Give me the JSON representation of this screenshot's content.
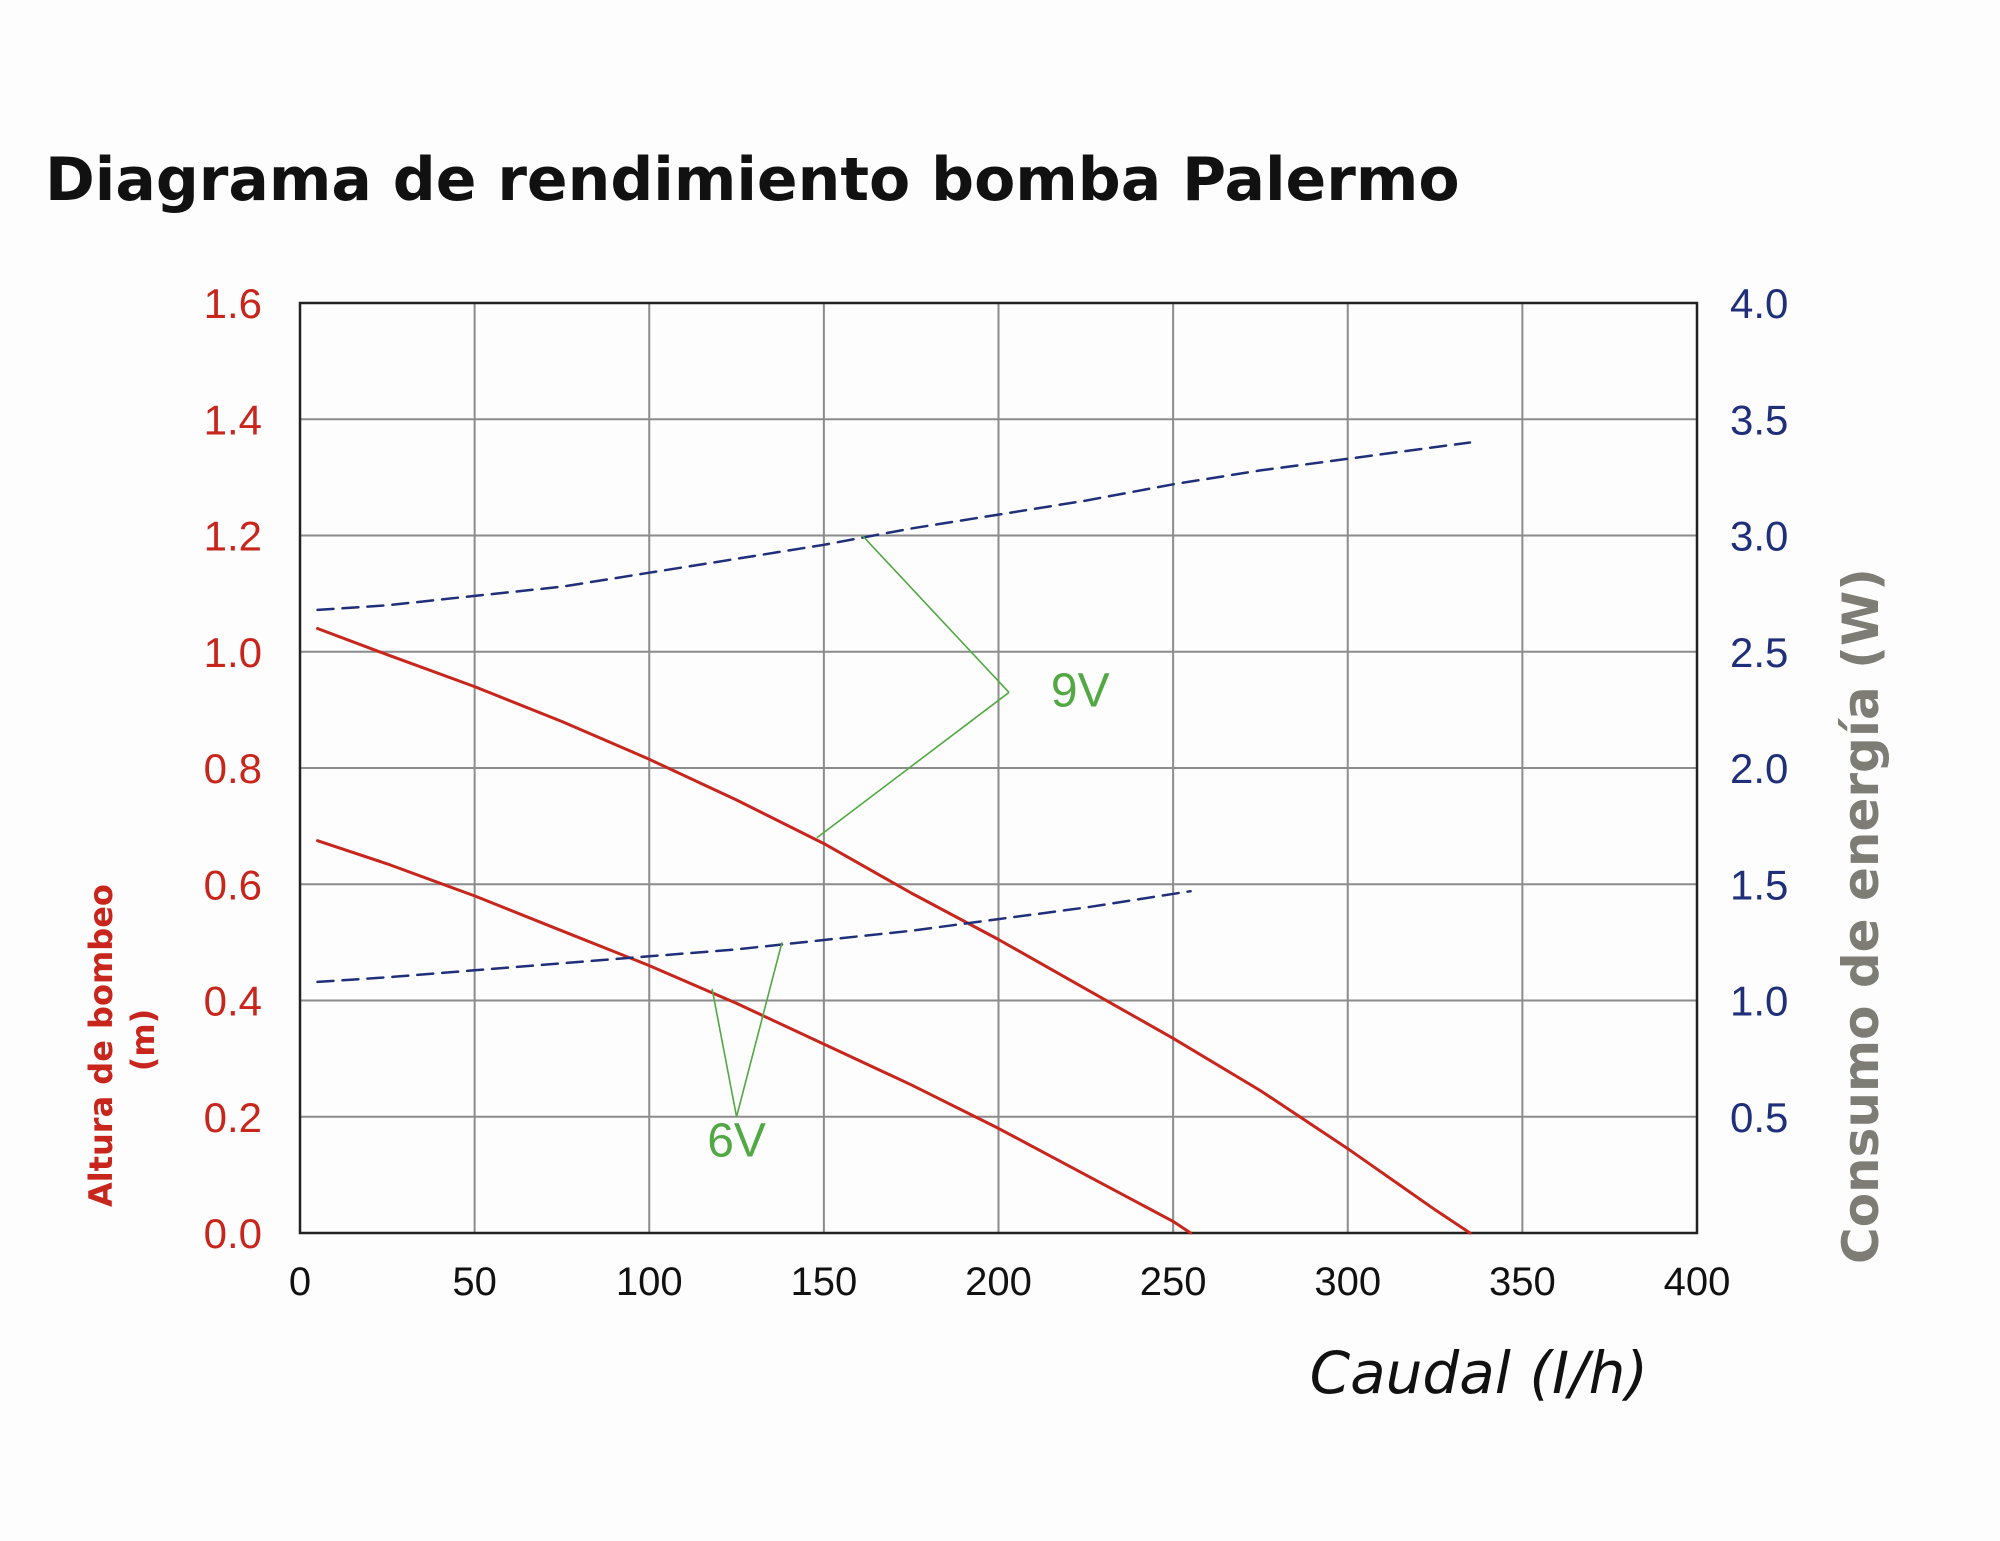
{
  "chart_data": {
    "type": "line",
    "title": "Diagrama de rendimiento bomba Palermo",
    "xlabel": "Caudal (I/h)",
    "ylabel": "Altura de bombeo (m)",
    "ylabel_lines": [
      "Altura de bombeo",
      "(m)"
    ],
    "y2label": "Consumo de energía (W)",
    "xlim": [
      0,
      400
    ],
    "ylim": [
      0,
      1.6
    ],
    "y2lim": [
      0,
      4.0
    ],
    "grid": true,
    "x_ticks": [
      "0",
      "50",
      "100",
      "150",
      "200",
      "250",
      "300",
      "350",
      "400"
    ],
    "y_ticks": [
      "0.0",
      "0.2",
      "0.4",
      "0.6",
      "0.8",
      "1.0",
      "1.2",
      "1.4",
      "1.6"
    ],
    "y2_ticks": [
      "0.5",
      "1.0",
      "1.5",
      "2.0",
      "2.5",
      "3.0",
      "3.5",
      "4.0"
    ],
    "colors": {
      "head": "#c8261c",
      "power": "#1f2f7a",
      "annotation": "#52a843",
      "grid": "#8c8c8c",
      "axis_right_label": "#7d7d75"
    },
    "series": [
      {
        "axis": "left",
        "style": "solid",
        "voltage": "9V",
        "x": [
          5,
          25,
          50,
          75,
          100,
          125,
          150,
          175,
          200,
          225,
          250,
          275,
          300,
          325,
          335
        ],
        "values": [
          1.04,
          0.995,
          0.94,
          0.88,
          0.815,
          0.745,
          0.67,
          0.585,
          0.505,
          0.42,
          0.335,
          0.245,
          0.145,
          0.04,
          0.0
        ]
      },
      {
        "axis": "left",
        "style": "solid",
        "voltage": "6V",
        "x": [
          5,
          25,
          50,
          75,
          100,
          125,
          150,
          175,
          200,
          225,
          250,
          255
        ],
        "values": [
          0.675,
          0.635,
          0.58,
          0.52,
          0.46,
          0.395,
          0.325,
          0.255,
          0.18,
          0.1,
          0.02,
          0.0
        ]
      },
      {
        "axis": "right",
        "style": "dashed",
        "voltage": "9V",
        "x": [
          5,
          25,
          50,
          75,
          100,
          125,
          150,
          175,
          200,
          225,
          250,
          275,
          300,
          325,
          335
        ],
        "values": [
          2.68,
          2.7,
          2.74,
          2.78,
          2.84,
          2.9,
          2.96,
          3.03,
          3.09,
          3.15,
          3.22,
          3.28,
          3.33,
          3.38,
          3.4
        ]
      },
      {
        "axis": "right",
        "style": "dashed",
        "voltage": "6V",
        "x": [
          5,
          25,
          50,
          75,
          100,
          125,
          150,
          175,
          200,
          225,
          255
        ],
        "values": [
          1.08,
          1.1,
          1.13,
          1.16,
          1.19,
          1.22,
          1.26,
          1.3,
          1.35,
          1.4,
          1.47
        ]
      }
    ],
    "annotations": [
      {
        "text": "9V",
        "label_at": {
          "x": 215,
          "y": 0.935
        },
        "vertex": {
          "x": 203,
          "y": 0.93
        },
        "pointers": [
          {
            "x": 161,
            "y": 1.2
          },
          {
            "x": 148,
            "y": 0.68
          }
        ]
      },
      {
        "text": "6V",
        "label_at": {
          "x": 125,
          "y": 0.14
        },
        "vertex": {
          "x": 125,
          "y": 0.2
        },
        "pointers": [
          {
            "x": 118,
            "y": 0.42
          },
          {
            "x": 138,
            "y": 0.5
          }
        ]
      }
    ]
  }
}
